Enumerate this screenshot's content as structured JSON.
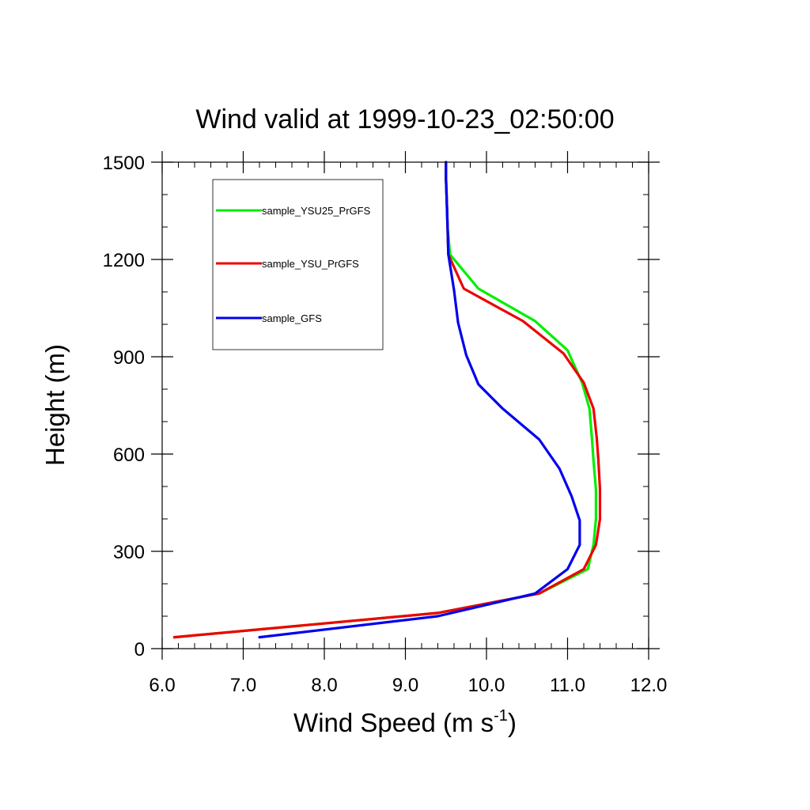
{
  "chart_data": {
    "type": "line",
    "title": "Wind valid at 1999-10-23_02:50:00",
    "xlabel_base": "Wind Speed (m s",
    "xlabel_sup": "-1",
    "xlabel_close": ")",
    "ylabel": "Height (m)",
    "xlim": [
      6.0,
      12.0
    ],
    "ylim": [
      0,
      1500
    ],
    "x_ticks": [
      6.0,
      7.0,
      8.0,
      9.0,
      10.0,
      11.0,
      12.0
    ],
    "x_tick_labels": [
      "6.0",
      "7.0",
      "8.0",
      "9.0",
      "10.0",
      "11.0",
      "12.0"
    ],
    "y_ticks": [
      0,
      300,
      600,
      900,
      1200,
      1500
    ],
    "y_tick_labels": [
      "0",
      "300",
      "600",
      "900",
      "1200",
      "1500"
    ],
    "x_minor_step": 0.2,
    "y_minor_step": 100,
    "grid": false,
    "legend_position": "top-left",
    "series": [
      {
        "name": "sample_YSU25_PrGFS",
        "color": "#00ee00",
        "x": [
          6.15,
          9.4,
          10.65,
          11.25,
          11.32,
          11.35,
          11.35,
          11.32,
          11.3,
          11.27,
          11.18,
          11.0,
          10.6,
          9.9,
          9.55,
          9.52,
          9.51,
          9.5,
          9.5
        ],
        "y": [
          35,
          110,
          170,
          245,
          320,
          400,
          490,
          580,
          650,
          740,
          820,
          920,
          1010,
          1110,
          1215,
          1300,
          1380,
          1450,
          1500
        ]
      },
      {
        "name": "sample_YSU_PrGFS",
        "color": "#ee0000",
        "x": [
          6.15,
          9.4,
          10.65,
          11.2,
          11.35,
          11.4,
          11.4,
          11.38,
          11.36,
          11.32,
          11.2,
          10.95,
          10.45,
          9.72,
          9.53,
          9.52,
          9.51,
          9.5,
          9.5
        ],
        "y": [
          35,
          110,
          170,
          245,
          320,
          400,
          490,
          580,
          650,
          740,
          820,
          910,
          1010,
          1110,
          1215,
          1300,
          1380,
          1450,
          1500
        ]
      },
      {
        "name": "sample_GFS",
        "color": "#0000ee",
        "x": [
          7.2,
          9.4,
          10.6,
          11.0,
          11.15,
          11.15,
          11.05,
          10.9,
          10.65,
          10.2,
          9.9,
          9.75,
          9.65,
          9.6,
          9.53,
          9.52,
          9.51,
          9.5,
          9.5
        ],
        "y": [
          35,
          100,
          170,
          245,
          320,
          395,
          470,
          555,
          645,
          740,
          815,
          905,
          1005,
          1105,
          1215,
          1300,
          1380,
          1450,
          1500
        ]
      }
    ]
  }
}
